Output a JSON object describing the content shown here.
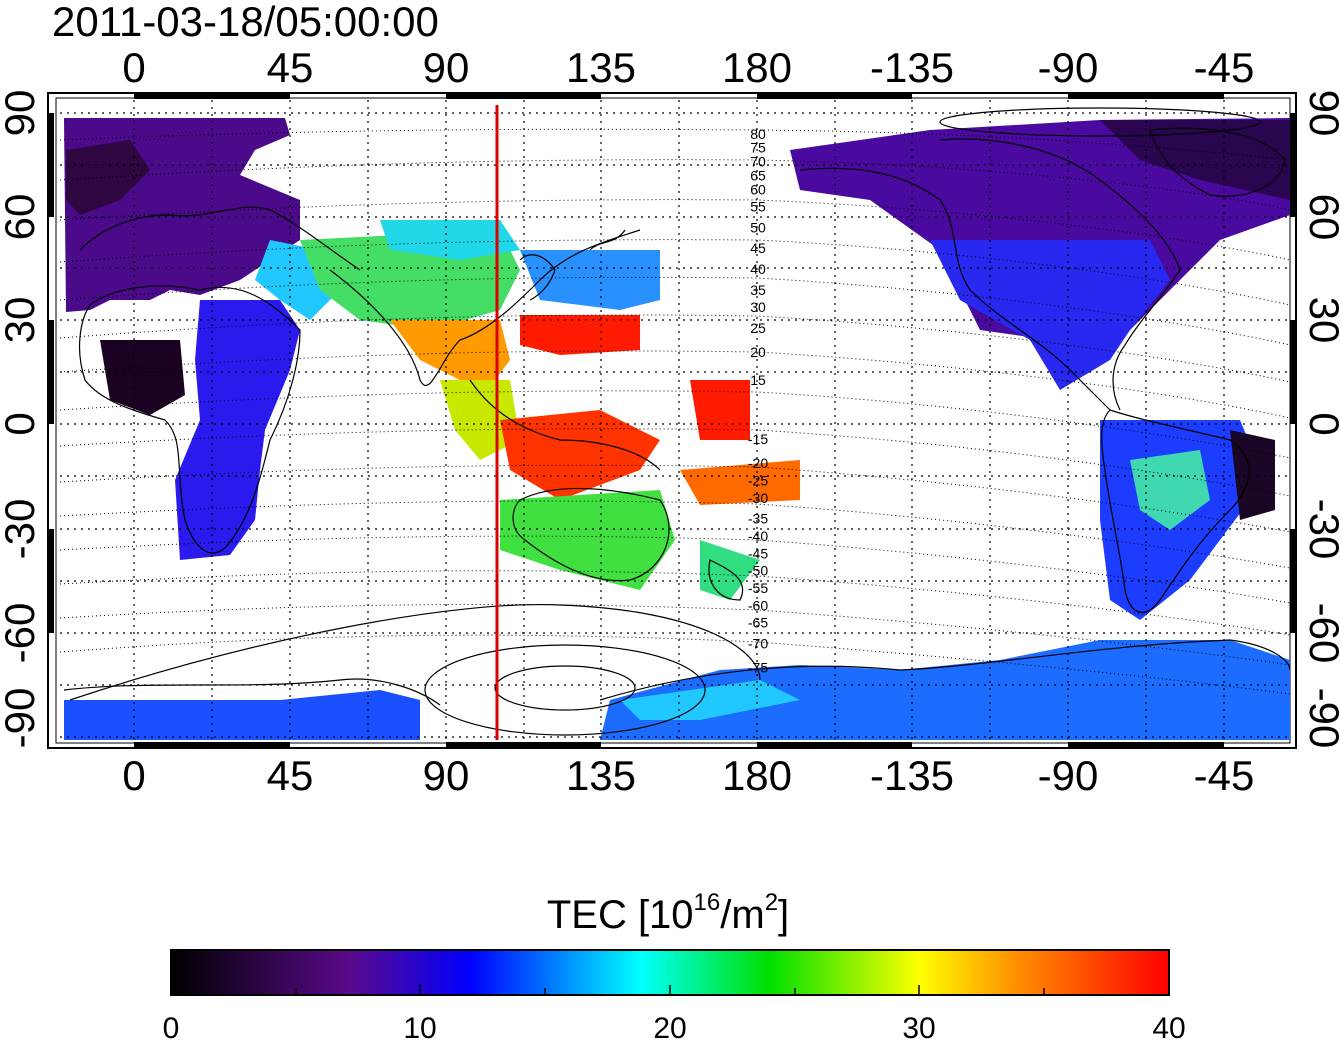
{
  "title": "2011-03-18/05:00:00",
  "map": {
    "lon_ticks_top": [
      "0",
      "45",
      "90",
      "135",
      "180",
      "-135",
      "-90",
      "-45"
    ],
    "lon_ticks_bottom": [
      "0",
      "45",
      "90",
      "135",
      "180",
      "-135",
      "-90",
      "-45"
    ],
    "lat_ticks_left": [
      "90",
      "60",
      "30",
      "0",
      "-30",
      "-60",
      "-90"
    ],
    "lat_ticks_right": [
      "90",
      "60",
      "30",
      "0",
      "-30",
      "-60",
      "-90"
    ],
    "lon_range": [
      -20,
      330
    ],
    "lat_range": [
      -90,
      90
    ],
    "red_line_longitude": 105,
    "contour_labels": [
      {
        "text": "80",
        "lat": 84
      },
      {
        "text": "75",
        "lat": 80
      },
      {
        "text": "70",
        "lat": 76
      },
      {
        "text": "65",
        "lat": 72
      },
      {
        "text": "60",
        "lat": 68
      },
      {
        "text": "55",
        "lat": 63
      },
      {
        "text": "50",
        "lat": 57
      },
      {
        "text": "45",
        "lat": 51
      },
      {
        "text": "40",
        "lat": 45
      },
      {
        "text": "35",
        "lat": 39
      },
      {
        "text": "30",
        "lat": 34
      },
      {
        "text": "25",
        "lat": 28
      },
      {
        "text": "20",
        "lat": 21
      },
      {
        "text": "15",
        "lat": 13
      },
      {
        "text": "-15",
        "lat": -4
      },
      {
        "text": "-20",
        "lat": -11
      },
      {
        "text": "-25",
        "lat": -16
      },
      {
        "text": "-30",
        "lat": -21
      },
      {
        "text": "-35",
        "lat": -27
      },
      {
        "text": "-40",
        "lat": -32
      },
      {
        "text": "-45",
        "lat": -37
      },
      {
        "text": "-50",
        "lat": -42
      },
      {
        "text": "-55",
        "lat": -47
      },
      {
        "text": "-60",
        "lat": -52
      },
      {
        "text": "-65",
        "lat": -57
      },
      {
        "text": "-70",
        "lat": -63
      },
      {
        "text": "-75",
        "lat": -70
      }
    ]
  },
  "colorbar": {
    "label_prefix": "TEC  [10",
    "label_exp": "16",
    "label_mid": "/m",
    "label_exp2": "2",
    "label_suffix": "]",
    "ticks": [
      "0",
      "10",
      "20",
      "30",
      "40"
    ],
    "min": 0,
    "max": 40,
    "colors": {
      "c0": "#000000",
      "c1": "#5a0a8c",
      "c2": "#0000ff",
      "c3": "#00ffff",
      "c4": "#00e000",
      "c5": "#ffff00",
      "c6": "#ff8c00",
      "c7": "#ff0000"
    }
  }
}
